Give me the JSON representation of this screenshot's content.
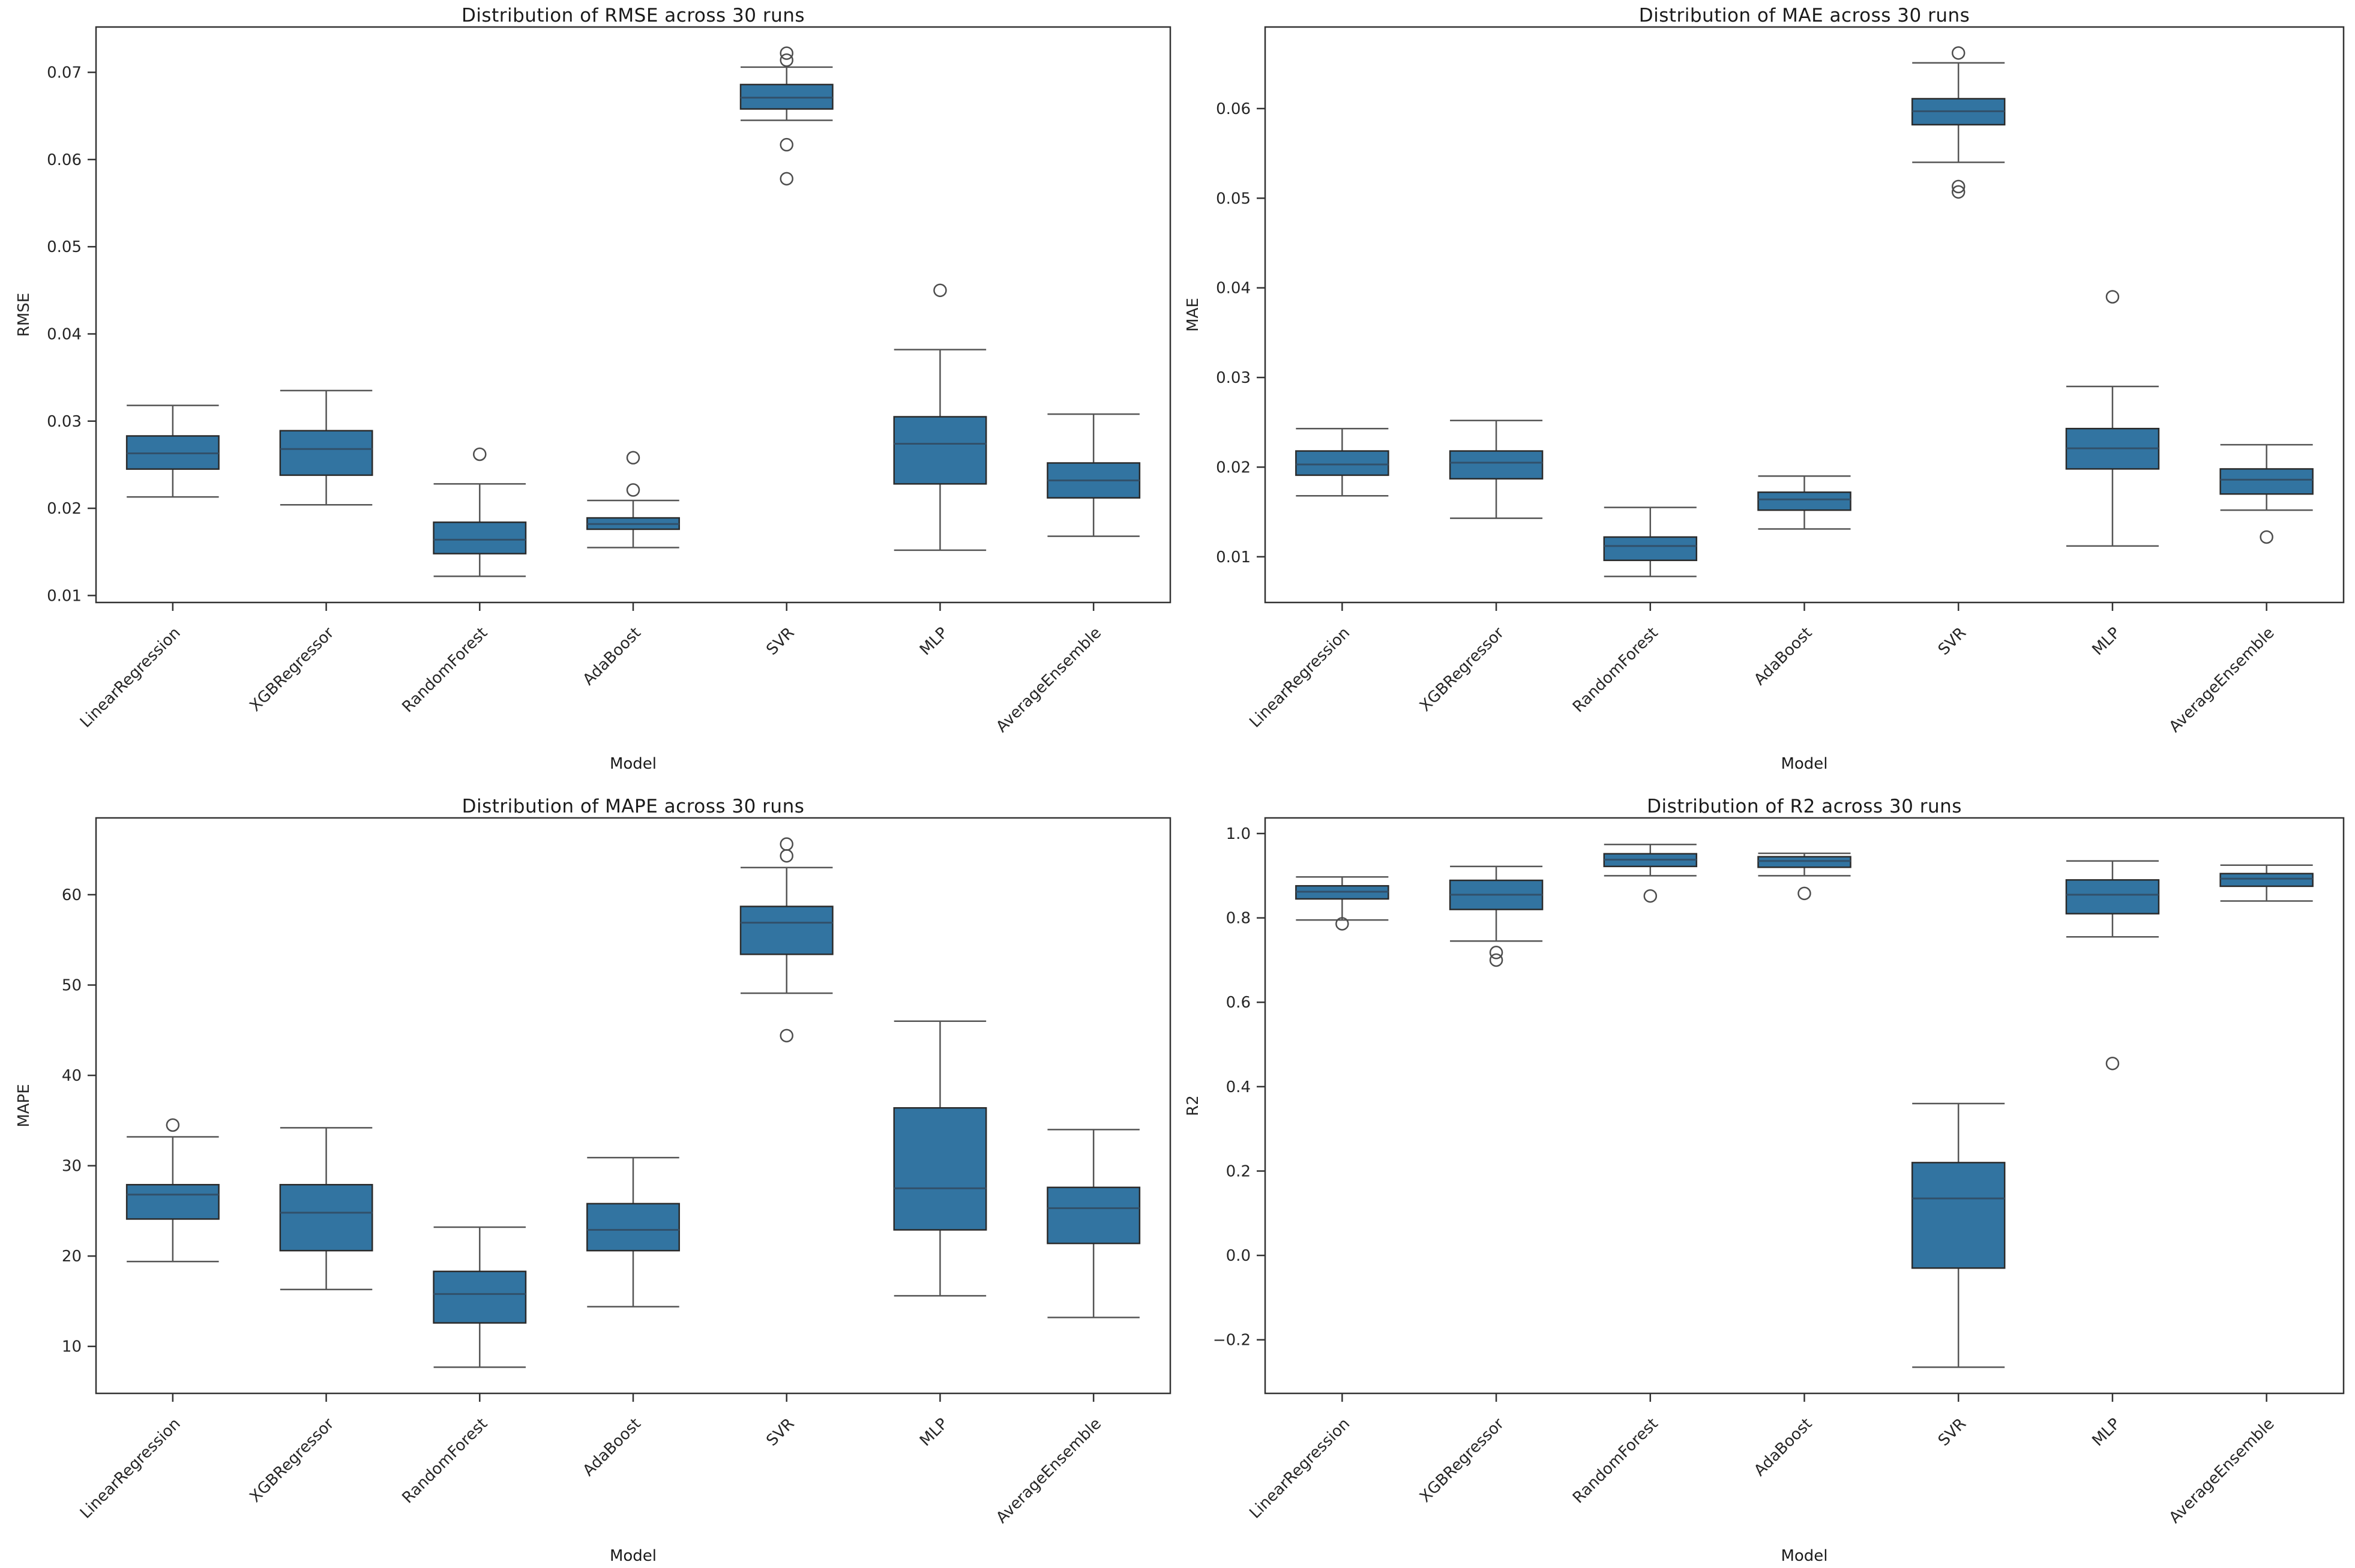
{
  "page": {
    "background": "#ffffff"
  },
  "colors": {
    "box_fill": "#3274a1",
    "box_edge": "#2b2b2b",
    "median": "#31506a",
    "whisker": "#555555",
    "outlier": "#4d4d4d",
    "spine": "#333333",
    "text": "#262626"
  },
  "chart_data": [
    {
      "type": "box",
      "title": "Distribution of RMSE across 30 runs",
      "xlabel": "Model",
      "ylabel": "RMSE",
      "categories": [
        "LinearRegression",
        "XGBRegressor",
        "RandomForest",
        "AdaBoost",
        "SVR",
        "MLP",
        "AverageEnsemble"
      ],
      "ylim": [
        0.0092,
        0.0752
      ],
      "yticks": [
        0.01,
        0.02,
        0.03,
        0.04,
        0.05,
        0.06,
        0.07
      ],
      "ytick_labels": [
        "0.01",
        "0.02",
        "0.03",
        "0.04",
        "0.05",
        "0.06",
        "0.07"
      ],
      "grid": false,
      "legend": "none",
      "boxes": [
        {
          "model": "LinearRegression",
          "whisker_low": 0.0213,
          "q1": 0.0245,
          "median": 0.0263,
          "q3": 0.0283,
          "whisker_high": 0.0318,
          "outliers": []
        },
        {
          "model": "XGBRegressor",
          "whisker_low": 0.0204,
          "q1": 0.0238,
          "median": 0.0268,
          "q3": 0.0289,
          "whisker_high": 0.0335,
          "outliers": []
        },
        {
          "model": "RandomForest",
          "whisker_low": 0.0122,
          "q1": 0.0148,
          "median": 0.0164,
          "q3": 0.0184,
          "whisker_high": 0.0228,
          "outliers": [
            0.0262
          ]
        },
        {
          "model": "AdaBoost",
          "whisker_low": 0.0155,
          "q1": 0.0176,
          "median": 0.0182,
          "q3": 0.0189,
          "whisker_high": 0.0209,
          "outliers": [
            0.0258,
            0.0221
          ]
        },
        {
          "model": "SVR",
          "whisker_low": 0.0645,
          "q1": 0.0658,
          "median": 0.0671,
          "q3": 0.0686,
          "whisker_high": 0.0706,
          "outliers": [
            0.0722,
            0.0714,
            0.0617,
            0.0578
          ]
        },
        {
          "model": "MLP",
          "whisker_low": 0.0152,
          "q1": 0.0228,
          "median": 0.0274,
          "q3": 0.0305,
          "whisker_high": 0.0382,
          "outliers": [
            0.045
          ]
        },
        {
          "model": "AverageEnsemble",
          "whisker_low": 0.0168,
          "q1": 0.0212,
          "median": 0.0232,
          "q3": 0.0252,
          "whisker_high": 0.0308,
          "outliers": []
        }
      ]
    },
    {
      "type": "box",
      "title": "Distribution of MAE across 30 runs",
      "xlabel": "Model",
      "ylabel": "MAE",
      "categories": [
        "LinearRegression",
        "XGBRegressor",
        "RandomForest",
        "AdaBoost",
        "SVR",
        "MLP",
        "AverageEnsemble"
      ],
      "ylim": [
        0.0049,
        0.0691
      ],
      "yticks": [
        0.01,
        0.02,
        0.03,
        0.04,
        0.05,
        0.06
      ],
      "ytick_labels": [
        "0.01",
        "0.02",
        "0.03",
        "0.04",
        "0.05",
        "0.06"
      ],
      "grid": false,
      "legend": "none",
      "boxes": [
        {
          "model": "LinearRegression",
          "whisker_low": 0.0168,
          "q1": 0.0191,
          "median": 0.0203,
          "q3": 0.0218,
          "whisker_high": 0.0243,
          "outliers": []
        },
        {
          "model": "XGBRegressor",
          "whisker_low": 0.0143,
          "q1": 0.0187,
          "median": 0.0205,
          "q3": 0.0218,
          "whisker_high": 0.0252,
          "outliers": []
        },
        {
          "model": "RandomForest",
          "whisker_low": 0.0078,
          "q1": 0.0096,
          "median": 0.0112,
          "q3": 0.0122,
          "whisker_high": 0.0155,
          "outliers": []
        },
        {
          "model": "AdaBoost",
          "whisker_low": 0.0131,
          "q1": 0.0152,
          "median": 0.0164,
          "q3": 0.0172,
          "whisker_high": 0.019,
          "outliers": []
        },
        {
          "model": "SVR",
          "whisker_low": 0.054,
          "q1": 0.0582,
          "median": 0.0597,
          "q3": 0.0611,
          "whisker_high": 0.0651,
          "outliers": [
            0.0662,
            0.0513,
            0.0507
          ]
        },
        {
          "model": "MLP",
          "whisker_low": 0.0112,
          "q1": 0.0198,
          "median": 0.0221,
          "q3": 0.0243,
          "whisker_high": 0.029,
          "outliers": [
            0.039
          ]
        },
        {
          "model": "AverageEnsemble",
          "whisker_low": 0.0152,
          "q1": 0.017,
          "median": 0.0186,
          "q3": 0.0198,
          "whisker_high": 0.0225,
          "outliers": [
            0.0122
          ]
        }
      ]
    },
    {
      "type": "box",
      "title": "Distribution of MAPE across 30 runs",
      "xlabel": "Model",
      "ylabel": "MAPE",
      "categories": [
        "LinearRegression",
        "XGBRegressor",
        "RandomForest",
        "AdaBoost",
        "SVR",
        "MLP",
        "AverageEnsemble"
      ],
      "ylim": [
        4.8,
        68.5
      ],
      "yticks": [
        10,
        20,
        30,
        40,
        50,
        60
      ],
      "ytick_labels": [
        "10",
        "20",
        "30",
        "40",
        "50",
        "60"
      ],
      "grid": false,
      "legend": "none",
      "boxes": [
        {
          "model": "LinearRegression",
          "whisker_low": 19.4,
          "q1": 24.1,
          "median": 26.8,
          "q3": 27.9,
          "whisker_high": 33.2,
          "outliers": [
            34.5
          ]
        },
        {
          "model": "XGBRegressor",
          "whisker_low": 16.3,
          "q1": 20.6,
          "median": 24.8,
          "q3": 27.9,
          "whisker_high": 34.2,
          "outliers": []
        },
        {
          "model": "RandomForest",
          "whisker_low": 7.7,
          "q1": 12.6,
          "median": 15.8,
          "q3": 18.3,
          "whisker_high": 23.2,
          "outliers": []
        },
        {
          "model": "AdaBoost",
          "whisker_low": 14.4,
          "q1": 20.6,
          "median": 22.9,
          "q3": 25.8,
          "whisker_high": 30.9,
          "outliers": []
        },
        {
          "model": "SVR",
          "whisker_low": 49.1,
          "q1": 53.4,
          "median": 56.9,
          "q3": 58.7,
          "whisker_high": 63.0,
          "outliers": [
            65.6,
            64.3,
            44.4
          ]
        },
        {
          "model": "MLP",
          "whisker_low": 15.6,
          "q1": 22.9,
          "median": 27.5,
          "q3": 36.4,
          "whisker_high": 46.0,
          "outliers": []
        },
        {
          "model": "AverageEnsemble",
          "whisker_low": 13.2,
          "q1": 21.4,
          "median": 25.3,
          "q3": 27.6,
          "whisker_high": 34.0,
          "outliers": []
        }
      ]
    },
    {
      "type": "box",
      "title": "Distribution of R2 across 30 runs",
      "xlabel": "Model",
      "ylabel": "R2",
      "categories": [
        "LinearRegression",
        "XGBRegressor",
        "RandomForest",
        "AdaBoost",
        "SVR",
        "MLP",
        "AverageEnsemble"
      ],
      "ylim": [
        -0.327,
        1.037
      ],
      "yticks": [
        -0.2,
        0.0,
        0.2,
        0.4,
        0.6,
        0.8,
        1.0
      ],
      "ytick_labels": [
        "−0.2",
        "0.0",
        "0.2",
        "0.4",
        "0.6",
        "0.8",
        "1.0"
      ],
      "grid": false,
      "legend": "none",
      "boxes": [
        {
          "model": "LinearRegression",
          "whisker_low": 0.795,
          "q1": 0.845,
          "median": 0.862,
          "q3": 0.876,
          "whisker_high": 0.897,
          "outliers": [
            0.786
          ]
        },
        {
          "model": "XGBRegressor",
          "whisker_low": 0.745,
          "q1": 0.82,
          "median": 0.855,
          "q3": 0.889,
          "whisker_high": 0.922,
          "outliers": [
            0.718,
            0.7
          ]
        },
        {
          "model": "RandomForest",
          "whisker_low": 0.9,
          "q1": 0.922,
          "median": 0.938,
          "q3": 0.952,
          "whisker_high": 0.974,
          "outliers": [
            0.852
          ]
        },
        {
          "model": "AdaBoost",
          "whisker_low": 0.9,
          "q1": 0.92,
          "median": 0.935,
          "q3": 0.945,
          "whisker_high": 0.953,
          "outliers": [
            0.858
          ]
        },
        {
          "model": "SVR",
          "whisker_low": -0.265,
          "q1": -0.03,
          "median": 0.135,
          "q3": 0.22,
          "whisker_high": 0.36,
          "outliers": []
        },
        {
          "model": "MLP",
          "whisker_low": 0.755,
          "q1": 0.81,
          "median": 0.855,
          "q3": 0.89,
          "whisker_high": 0.935,
          "outliers": [
            0.455
          ]
        },
        {
          "model": "AverageEnsemble",
          "whisker_low": 0.84,
          "q1": 0.875,
          "median": 0.893,
          "q3": 0.905,
          "whisker_high": 0.925,
          "outliers": []
        }
      ]
    }
  ]
}
